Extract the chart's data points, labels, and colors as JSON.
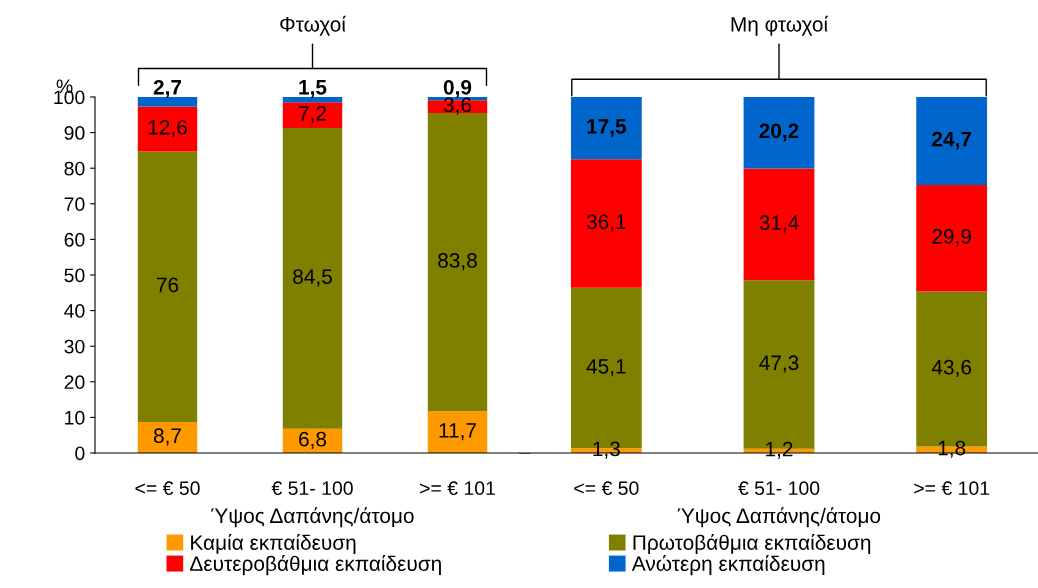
{
  "chart_data": [
    {
      "type": "bar",
      "stacked": true,
      "categories": [
        "<= € 50",
        "€ 51- 100",
        ">= € 101"
      ],
      "xlabel": "Ύψος Δαπάνης/άτομο",
      "ylabel": "%",
      "ylim": [
        0,
        100
      ],
      "yticks": [
        0,
        10,
        20,
        30,
        40,
        50,
        60,
        70,
        80,
        90,
        100
      ],
      "annotations": [
        "Φτωχοί"
      ],
      "legend": "bottom",
      "series": [
        {
          "name": "Καμία εκπαίδευση",
          "color": "#ff9900",
          "values": [
            8.7,
            6.8,
            11.7
          ],
          "value_labels": [
            "8,7",
            "6,8",
            "11,7"
          ]
        },
        {
          "name": "Πρωτοβάθμια εκπαίδευση",
          "color": "#808000",
          "values": [
            76,
            84.5,
            83.8
          ],
          "value_labels": [
            "76",
            "84,5",
            "83,8"
          ]
        },
        {
          "name": "Δευτεροβάθμια εκπαίδευση",
          "color": "#ff0000",
          "values": [
            12.6,
            7.2,
            3.6
          ],
          "value_labels": [
            "12,6",
            "7,2",
            "3,6"
          ]
        },
        {
          "name": "Ανώτερη εκπαίδευση",
          "color": "#0066cc",
          "values": [
            2.7,
            1.5,
            0.9
          ],
          "value_labels": [
            "2,7",
            "1,5",
            "0,9"
          ]
        }
      ]
    },
    {
      "type": "bar",
      "stacked": true,
      "categories": [
        "<= € 50",
        "€ 51- 100",
        ">= € 101"
      ],
      "xlabel": "Ύψος Δαπάνης/άτομο",
      "ylim": [
        0,
        100
      ],
      "tick_labels": "x",
      "annotations": [
        "Μη φτωχοί"
      ],
      "series": [
        {
          "color": "#ff9900",
          "values": [
            1.3,
            1.2,
            1.8
          ],
          "value_labels": [
            "1,3",
            "1,2",
            "1,8"
          ]
        },
        {
          "color": "#808000",
          "values": [
            45.1,
            47.3,
            43.6
          ],
          "value_labels": [
            "45,1",
            "47,3",
            "43,6"
          ]
        },
        {
          "color": "#ff0000",
          "values": [
            36.1,
            31.4,
            29.9
          ],
          "value_labels": [
            "36,1",
            "31,4",
            "29,9"
          ]
        },
        {
          "color": "#0066cc",
          "values": [
            17.5,
            20.2,
            24.7
          ],
          "value_labels": [
            "17,5",
            "20,2",
            "24,7"
          ]
        }
      ]
    }
  ]
}
